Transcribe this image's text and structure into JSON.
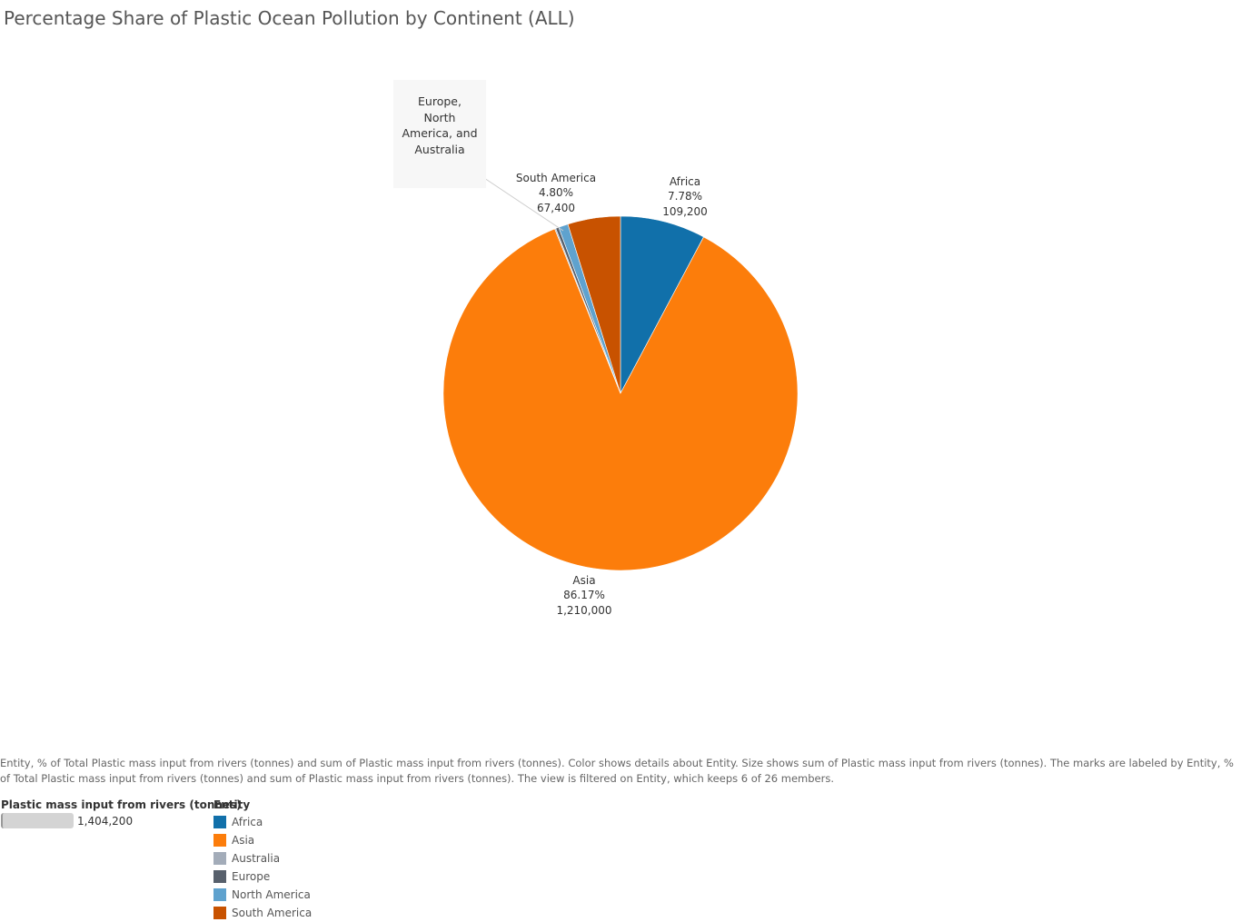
{
  "chart_data": {
    "type": "pie",
    "title": "Percentage Share of Plastic Ocean Pollution by Continent (ALL)",
    "slices": [
      {
        "entity": "Africa",
        "pct": "7.78%",
        "value": 109200,
        "value_label": "109,200",
        "color": "#1170aa"
      },
      {
        "entity": "Asia",
        "pct": "86.17%",
        "value": 1210000,
        "value_label": "1,210,000",
        "color": "#fc7d0b"
      },
      {
        "entity": "Australia",
        "value": 1400,
        "color": "#a3acb9"
      },
      {
        "entity": "Europe",
        "value": 3900,
        "color": "#57606c"
      },
      {
        "entity": "North America",
        "value": 12300,
        "color": "#5fa2ce"
      },
      {
        "entity": "South America",
        "pct": "4.80%",
        "value": 67400,
        "value_label": "67,400",
        "color": "#c85200"
      }
    ],
    "callout_lines": [
      "Europe,",
      "North",
      "America, and",
      "Australia"
    ]
  },
  "caption": "Entity, % of Total Plastic mass input from rivers (tonnes) and sum of Plastic mass input from rivers (tonnes).  Color shows details about Entity.  Size shows sum of Plastic mass input from rivers (tonnes).  The marks are labeled by Entity, % of Total Plastic mass input from rivers (tonnes) and sum of Plastic mass input from rivers (tonnes). The view is filtered on Entity, which keeps 6 of 26 members.",
  "size_legend": {
    "title": "Plastic mass input from rivers (tonnes)",
    "max_label": "1,404,200"
  },
  "color_legend": {
    "title": "Entity",
    "items": [
      {
        "label": "Africa",
        "color": "#1170aa"
      },
      {
        "label": "Asia",
        "color": "#fc7d0b"
      },
      {
        "label": "Australia",
        "color": "#a3acb9"
      },
      {
        "label": "Europe",
        "color": "#57606c"
      },
      {
        "label": "North America",
        "color": "#5fa2ce"
      },
      {
        "label": "South America",
        "color": "#c85200"
      }
    ]
  }
}
